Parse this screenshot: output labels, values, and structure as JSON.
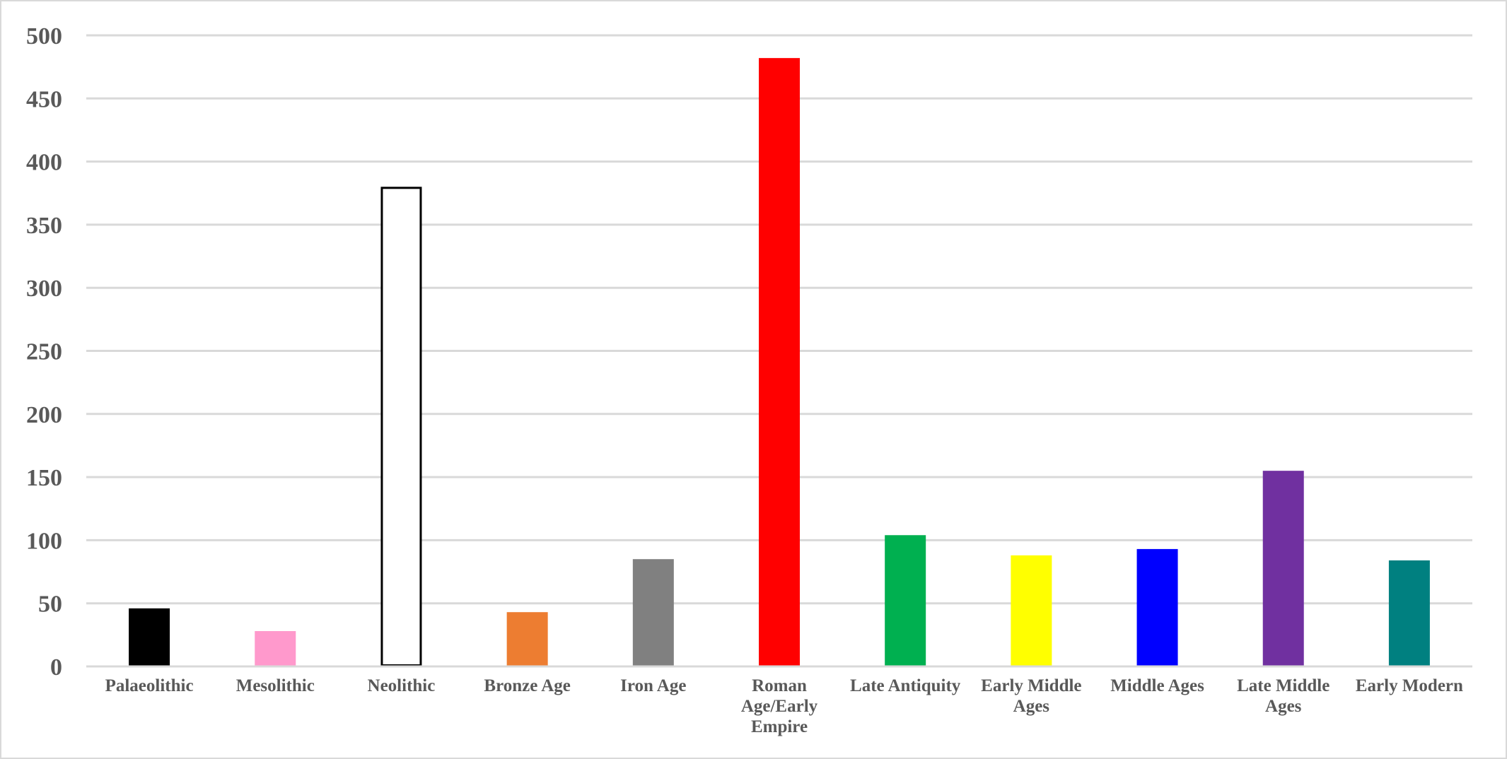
{
  "chart_data": {
    "type": "bar",
    "title": "",
    "xlabel": "",
    "ylabel": "",
    "ylim": [
      0,
      500
    ],
    "yticks": [
      0,
      50,
      100,
      150,
      200,
      250,
      300,
      350,
      400,
      450,
      500
    ],
    "grid": true,
    "legend": "none",
    "categories": [
      [
        "Palaeolithic"
      ],
      [
        "Mesolithic"
      ],
      [
        "Neolithic"
      ],
      [
        "Bronze Age"
      ],
      [
        "Iron Age"
      ],
      [
        "Roman",
        "Age/Early",
        "Empire"
      ],
      [
        "Late Antiquity"
      ],
      [
        "Early Middle",
        "Ages"
      ],
      [
        "Middle Ages"
      ],
      [
        "Late Middle",
        "Ages"
      ],
      [
        "Early Modern"
      ]
    ],
    "values": [
      46,
      28,
      380,
      43,
      85,
      482,
      104,
      88,
      93,
      155,
      84
    ],
    "colors": [
      "#000000",
      "#ff99cc",
      "#ffffff",
      "#ed7d31",
      "#808080",
      "#ff0000",
      "#00b050",
      "#ffff00",
      "#0000ff",
      "#7030a0",
      "#008080"
    ],
    "outline_colors": [
      "none",
      "none",
      "#000000",
      "none",
      "none",
      "none",
      "none",
      "none",
      "none",
      "none",
      "none"
    ]
  }
}
